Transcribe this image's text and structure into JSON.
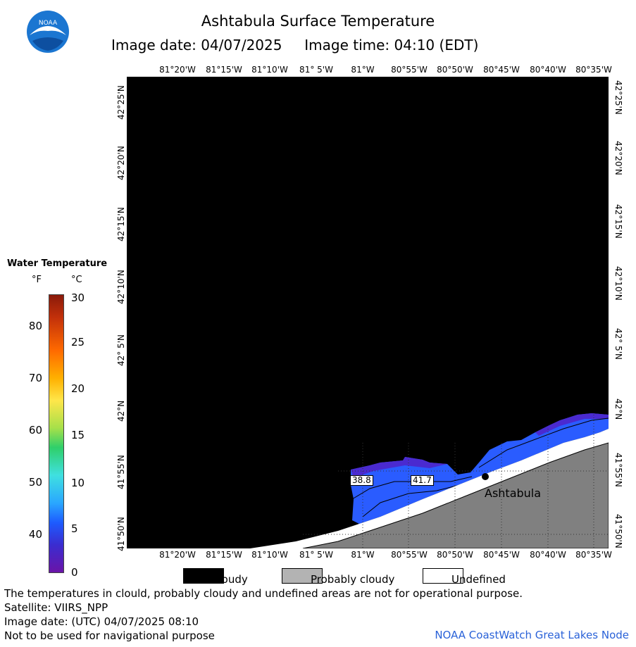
{
  "header": {
    "title": "Ashtabula Surface Temperature",
    "subtitle": "Image date: 04/07/2025     Image time: 04:10 (EDT)",
    "logo_text": "NOAA"
  },
  "map": {
    "lon_ticks": [
      "81°20'W",
      "81°15'W",
      "81°10'W",
      "81° 5'W",
      "81°W",
      "80°55'W",
      "80°50'W",
      "80°45'W",
      "80°40'W",
      "80°35'W"
    ],
    "lat_ticks": [
      "42°25'N",
      "42°20'N",
      "42°15'N",
      "42°10'N",
      "42° 5'N",
      "42°N",
      "41°55'N",
      "41°50'N"
    ],
    "city": "Ashtabula",
    "contour_labels": [
      "38.8",
      "41.7"
    ],
    "colors": {
      "cloudy": "#000000",
      "land": "#808080",
      "undefined": "#ffffff",
      "water_cold": "#2a5cff"
    }
  },
  "scale": {
    "title": "Water Temperature",
    "unit_f": "°F",
    "unit_c": "°C",
    "f_ticks": [
      "80",
      "70",
      "60",
      "50",
      "40"
    ],
    "c_ticks": [
      "30",
      "25",
      "20",
      "15",
      "10",
      "5",
      "0"
    ]
  },
  "legend": [
    {
      "label": "Cloudy",
      "color": "#000000"
    },
    {
      "label": "Probably cloudy",
      "color": "#b3b3b3"
    },
    {
      "label": "Undefined",
      "color": "#ffffff"
    }
  ],
  "footer": {
    "disclaimer": "The temperatures in clould, probably cloudy and undefined areas are not for operational purpose.",
    "satellite": "Satellite: VIIRS_NPP",
    "utc_date": "Image date: (UTC) 04/07/2025  08:10",
    "nav_warning": "Not to be used for navigational purpose",
    "credit": "NOAA CoastWatch Great Lakes Node"
  }
}
